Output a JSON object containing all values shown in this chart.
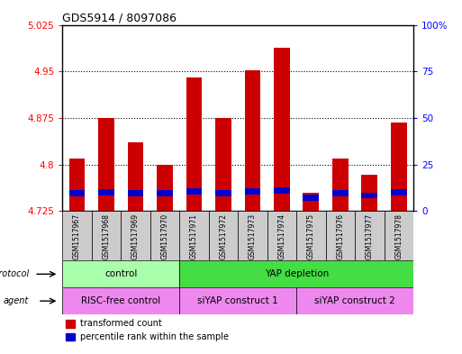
{
  "title": "GDS5914 / 8097086",
  "samples": [
    "GSM1517967",
    "GSM1517968",
    "GSM1517969",
    "GSM1517970",
    "GSM1517971",
    "GSM1517972",
    "GSM1517973",
    "GSM1517974",
    "GSM1517975",
    "GSM1517976",
    "GSM1517977",
    "GSM1517978"
  ],
  "transformed_counts": [
    4.81,
    4.875,
    4.835,
    4.8,
    4.94,
    4.875,
    4.951,
    4.988,
    4.755,
    4.81,
    4.783,
    4.868
  ],
  "percentile_bottom": [
    4.748,
    4.75,
    4.748,
    4.748,
    4.751,
    4.749,
    4.751,
    4.753,
    4.741,
    4.748,
    4.745,
    4.75
  ],
  "percentile_height": [
    0.01,
    0.01,
    0.01,
    0.01,
    0.01,
    0.01,
    0.01,
    0.01,
    0.01,
    0.01,
    0.01,
    0.01
  ],
  "ymin": 4.725,
  "ymax": 5.025,
  "yticks": [
    4.725,
    4.8,
    4.875,
    4.95,
    5.025
  ],
  "ytick_labels": [
    "4.725",
    "4.8",
    "4.875",
    "4.95",
    "5.025"
  ],
  "y2ticks_pct": [
    0,
    25,
    50,
    75,
    100
  ],
  "y2tick_labels": [
    "0",
    "25",
    "50",
    "75",
    "100%"
  ],
  "bar_color": "#cc0000",
  "percentile_color": "#0000cc",
  "protocol_groups": [
    {
      "label": "control",
      "start": 0,
      "end": 4,
      "color": "#aaffaa"
    },
    {
      "label": "YAP depletion",
      "start": 4,
      "end": 12,
      "color": "#44dd44"
    }
  ],
  "agent_groups": [
    {
      "label": "RISC-free control",
      "start": 0,
      "end": 4,
      "color": "#ee88ee"
    },
    {
      "label": "siYAP construct 1",
      "start": 4,
      "end": 8,
      "color": "#ee88ee"
    },
    {
      "label": "siYAP construct 2",
      "start": 8,
      "end": 12,
      "color": "#ee88ee"
    }
  ],
  "legend_items": [
    "transformed count",
    "percentile rank within the sample"
  ],
  "bar_color_legend": "#cc0000",
  "percentile_color_legend": "#0000cc",
  "bg_color": "#ffffff",
  "tick_box_color": "#cccccc",
  "plot_bg": "#ffffff"
}
